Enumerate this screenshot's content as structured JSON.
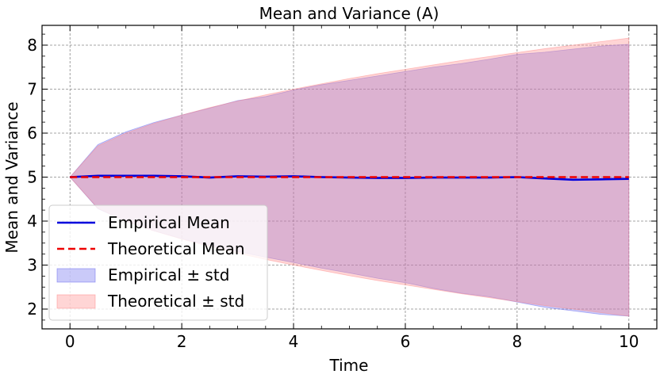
{
  "chart_data": {
    "type": "line",
    "title": "Mean and Variance (A)",
    "xlabel": "Time",
    "ylabel": "Mean and Variance",
    "xlim": [
      -0.5,
      10.5
    ],
    "ylim": [
      1.55,
      8.45
    ],
    "xticks": [
      0,
      2,
      4,
      6,
      8,
      10
    ],
    "yticks": [
      2,
      3,
      4,
      5,
      6,
      7,
      8
    ],
    "grid": true,
    "legend_position": "lower-left",
    "series": [
      {
        "name": "Empirical Mean",
        "kind": "line",
        "color": "#0000dd",
        "x": [
          0,
          0.5,
          1,
          1.5,
          2,
          2.5,
          3,
          3.5,
          4,
          4.5,
          5,
          5.5,
          6,
          6.5,
          7,
          7.5,
          8,
          8.5,
          9,
          9.5,
          10
        ],
        "y": [
          5.0,
          5.03,
          5.03,
          5.03,
          5.02,
          4.99,
          5.02,
          5.01,
          5.02,
          5.0,
          4.99,
          4.98,
          4.98,
          4.99,
          4.99,
          4.99,
          5.0,
          4.97,
          4.94,
          4.95,
          4.96
        ]
      },
      {
        "name": "Theoretical Mean",
        "kind": "line",
        "color": "#ee0000",
        "dashed": true,
        "x": [
          0,
          10
        ],
        "y": [
          5.0,
          5.0
        ]
      },
      {
        "name": "Empirical ± std",
        "kind": "band",
        "color": "#6666ee",
        "x": [
          0,
          0.5,
          1,
          1.5,
          2,
          2.5,
          3,
          3.5,
          4,
          4.5,
          5,
          5.5,
          6,
          6.5,
          7,
          7.5,
          8,
          8.5,
          9,
          9.5,
          10
        ],
        "upper": [
          5.0,
          5.74,
          6.03,
          6.24,
          6.41,
          6.57,
          6.74,
          6.83,
          6.98,
          7.1,
          7.2,
          7.3,
          7.4,
          7.5,
          7.58,
          7.68,
          7.79,
          7.84,
          7.91,
          7.98,
          8.02
        ],
        "lower": [
          5.0,
          4.28,
          4.0,
          3.78,
          3.6,
          3.45,
          3.31,
          3.18,
          3.06,
          2.93,
          2.82,
          2.7,
          2.6,
          2.47,
          2.36,
          2.28,
          2.16,
          2.04,
          1.96,
          1.88,
          1.84
        ]
      },
      {
        "name": "Theoretical ± std",
        "kind": "band",
        "color": "#ff8888",
        "x": [
          0,
          0.5,
          1,
          1.5,
          2,
          2.5,
          3,
          3.5,
          4,
          4.5,
          5,
          5.5,
          6,
          6.5,
          7,
          7.5,
          8,
          8.5,
          9,
          9.5,
          10
        ],
        "upper": [
          5.0,
          5.71,
          6.0,
          6.22,
          6.41,
          6.58,
          6.73,
          6.87,
          7.0,
          7.12,
          7.24,
          7.35,
          7.45,
          7.55,
          7.65,
          7.74,
          7.83,
          7.92,
          8.0,
          8.08,
          8.16
        ],
        "lower": [
          5.0,
          4.29,
          4.0,
          3.78,
          3.59,
          3.42,
          3.27,
          3.13,
          3.0,
          2.88,
          2.76,
          2.65,
          2.55,
          2.45,
          2.35,
          2.26,
          2.17,
          2.08,
          2.0,
          1.92,
          1.84
        ]
      }
    ]
  }
}
